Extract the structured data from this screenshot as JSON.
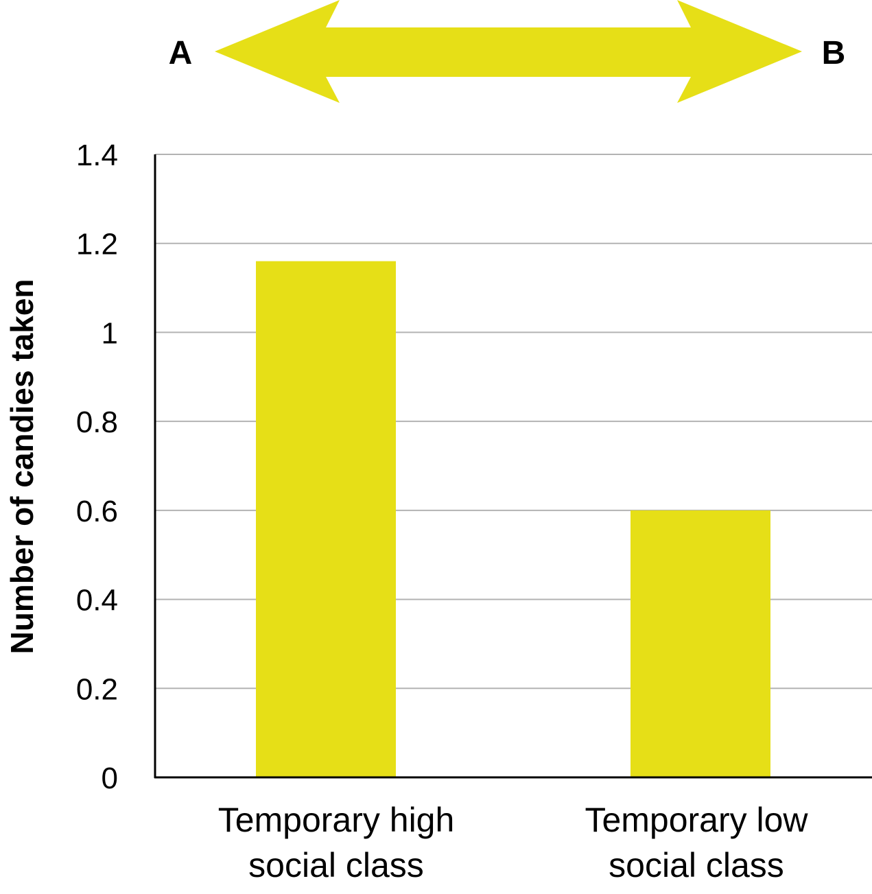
{
  "arrow": {
    "left_label": "A",
    "right_label": "B",
    "color": "#E6DF17"
  },
  "chart_data": {
    "type": "bar",
    "categories": [
      [
        "Temporary high",
        "social class"
      ],
      [
        "Temporary low",
        "social class"
      ]
    ],
    "values": [
      1.16,
      0.6
    ],
    "ylabel": "Number of candies taken",
    "xlabel": "",
    "ylim": [
      0,
      1.4
    ],
    "yticks": [
      "0",
      "0.2",
      "0.4",
      "0.6",
      "0.8",
      "1",
      "1.2",
      "1.4"
    ],
    "ytick_values": [
      0,
      0.2,
      0.4,
      0.6,
      0.8,
      1.0,
      1.2,
      1.4
    ],
    "grid": true,
    "bar_color": "#E6DF17",
    "grid_color": "#B3B3B3",
    "axis_color": "#000000"
  }
}
